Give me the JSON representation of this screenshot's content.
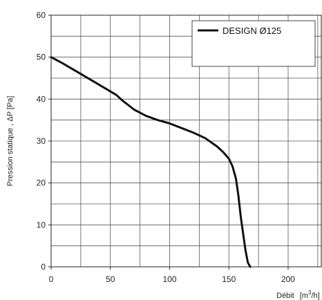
{
  "chart_data": {
    "type": "line",
    "ylabel": "Pression statique , ΔP [Pa]",
    "xlabel": "Débit",
    "xlabel_unit": "[m3/h]",
    "xlim": [
      0,
      228
    ],
    "ylim": [
      0,
      60
    ],
    "x_ticks": [
      0,
      50,
      100,
      150,
      200
    ],
    "y_ticks": [
      0,
      10,
      20,
      30,
      40,
      50,
      60
    ],
    "x_grid_step": 25,
    "y_grid_step": 5,
    "grid": true,
    "legend_position": "top-right",
    "series": [
      {
        "name": "DESIGN Ø125",
        "color": "#111111",
        "x": [
          0,
          10,
          25,
          40,
          55,
          60,
          70,
          80,
          90,
          100,
          110,
          120,
          130,
          140,
          145,
          150,
          153,
          156,
          158,
          160,
          162,
          164,
          166,
          168
        ],
        "y": [
          50,
          48.5,
          46,
          43.5,
          41,
          39.7,
          37.5,
          36,
          35,
          34.2,
          33.1,
          32,
          30.7,
          28.7,
          27.4,
          25.8,
          24,
          21,
          17,
          12,
          8,
          4,
          1,
          0
        ]
      }
    ]
  }
}
